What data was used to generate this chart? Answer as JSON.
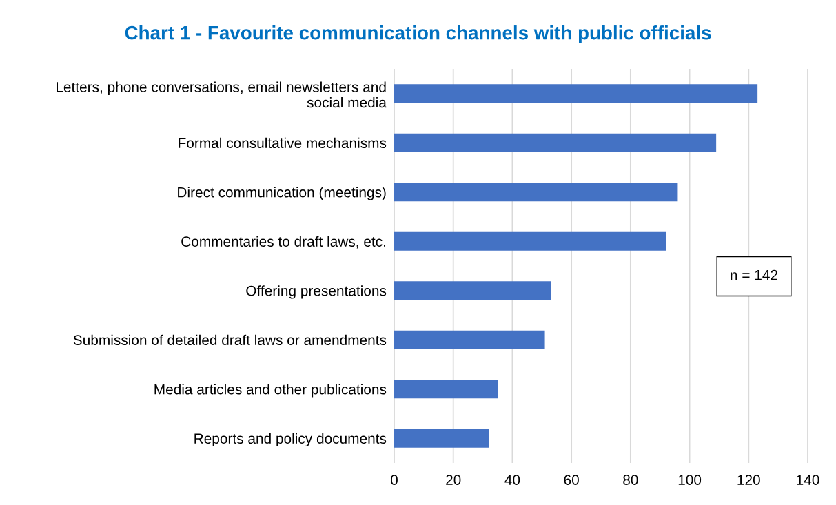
{
  "chart_data": {
    "type": "bar",
    "orientation": "horizontal",
    "title": "Chart 1 - Favourite communication channels with public officials",
    "categories": [
      "Letters, phone conversations, email newsletters and\nsocial media",
      "Formal consultative mechanisms",
      "Direct communication (meetings)",
      "Commentaries to draft laws, etc.",
      "Offering presentations",
      "Submission of detailed draft laws or amendments",
      "Media articles and other publications",
      "Reports and policy documents"
    ],
    "values": [
      123,
      109,
      96,
      92,
      53,
      51,
      35,
      32
    ],
    "color": "#4472c4",
    "xlim": [
      0,
      140
    ],
    "xticks": [
      0,
      20,
      40,
      60,
      80,
      100,
      120,
      140
    ],
    "grid": "x",
    "annotations": [
      "n = 142"
    ]
  }
}
